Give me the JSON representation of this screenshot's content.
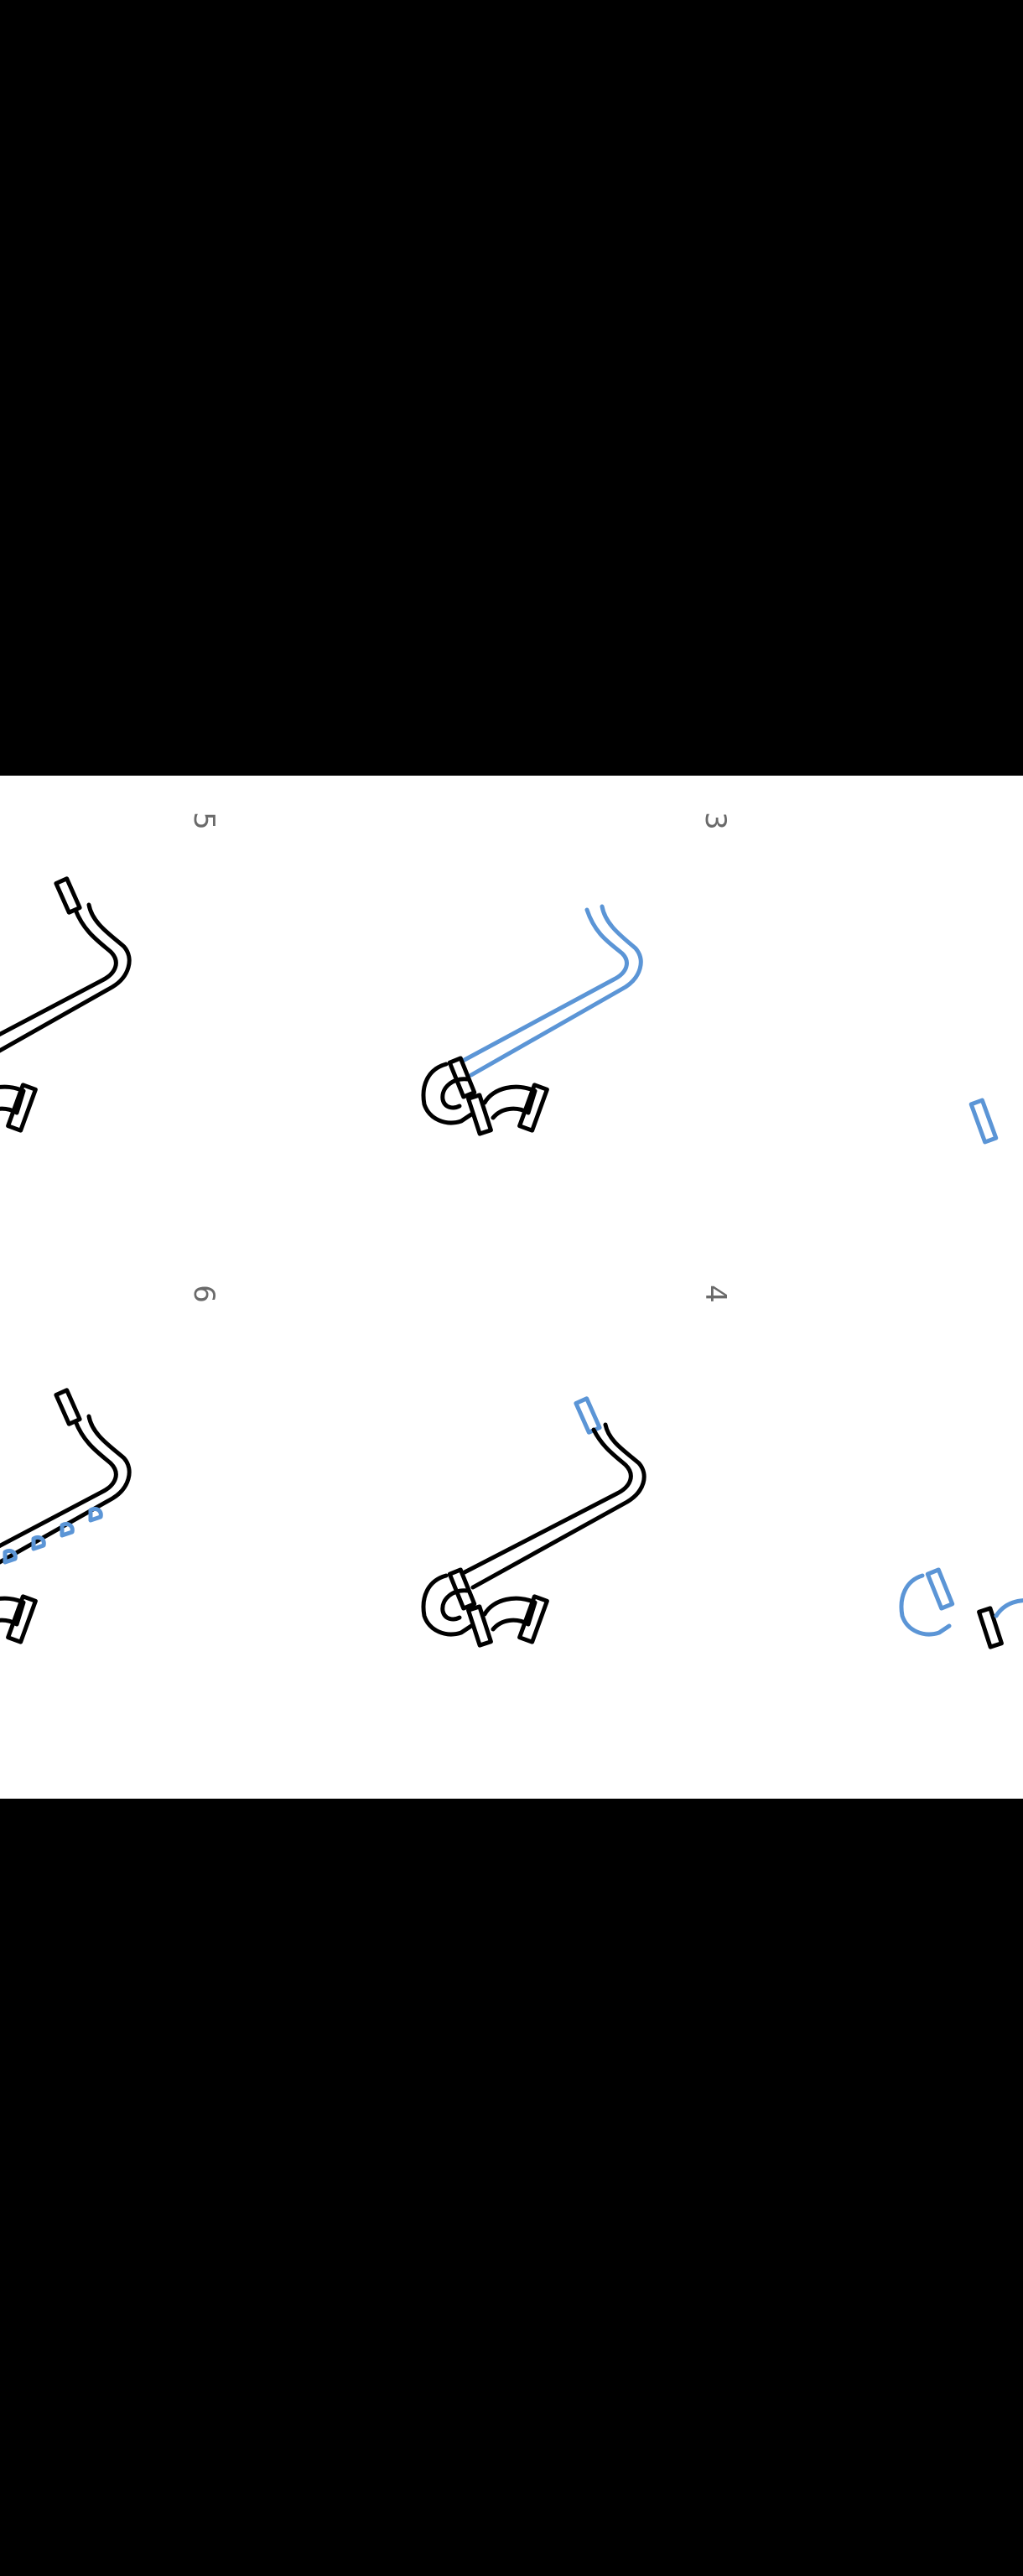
{
  "steps": [
    {
      "label": "3"
    },
    {
      "label": "4"
    },
    {
      "label": "5"
    },
    {
      "label": "6"
    }
  ],
  "colors": {
    "letterbox": "#000000",
    "background": "#ffffff",
    "outline": "#000000",
    "new_stroke": "#5b95d6",
    "step_number": "#6a6a6a"
  }
}
